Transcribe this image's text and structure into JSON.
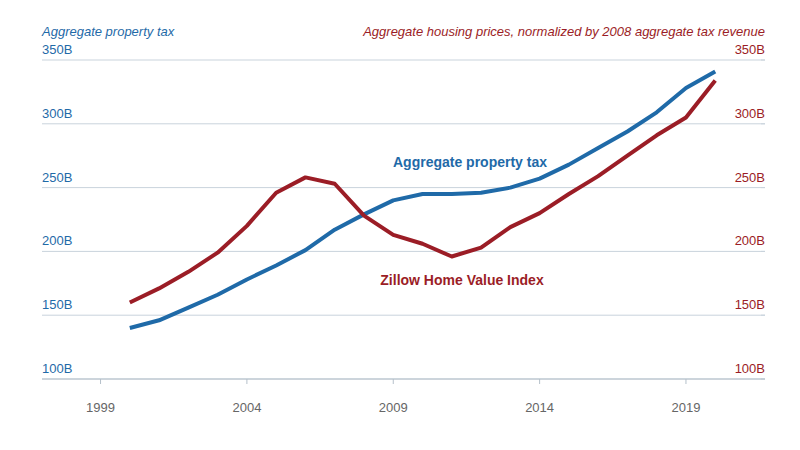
{
  "chart_data": {
    "type": "line",
    "y_label": "Aggregate property tax",
    "y2_label": "Aggregate housing prices, normalized by 2008 aggregate tax revenue",
    "x": [
      2000,
      2001,
      2002,
      2003,
      2004,
      2005,
      2006,
      2007,
      2008,
      2009,
      2010,
      2011,
      2012,
      2013,
      2014,
      2015,
      2016,
      2017,
      2018,
      2019,
      2020
    ],
    "series": [
      {
        "name": "Aggregate property tax",
        "color": "#1f6aa8",
        "values": [
          140,
          146,
          156,
          166,
          178,
          189,
          201,
          217,
          229,
          240,
          245,
          245,
          246,
          250,
          257,
          268,
          281,
          294,
          309,
          328,
          341
        ]
      },
      {
        "name": "Zillow Home Value Index",
        "color": "#9b1d26",
        "axis": "y2",
        "values": [
          160,
          171,
          184,
          199,
          220,
          246,
          258,
          253,
          228,
          213,
          206,
          196,
          203,
          219,
          230,
          245,
          259,
          275,
          291,
          305,
          334
        ]
      }
    ],
    "xlim": [
      1997,
      2021.7
    ],
    "xticks": [
      1999,
      2004,
      2009,
      2014,
      2019
    ],
    "ylim": [
      100,
      350
    ],
    "yticks": [
      {
        "value": 100,
        "label": "100B"
      },
      {
        "value": 150,
        "label": "150B"
      },
      {
        "value": 200,
        "label": "200B"
      },
      {
        "value": 250,
        "label": "250B"
      },
      {
        "value": 300,
        "label": "300B"
      },
      {
        "value": 350,
        "label": "350B"
      }
    ],
    "y2lim": [
      100,
      350
    ],
    "y2ticks": [
      {
        "value": 100,
        "label": "100B"
      },
      {
        "value": 150,
        "label": "150B"
      },
      {
        "value": 200,
        "label": "200B"
      },
      {
        "value": 250,
        "label": "250B"
      },
      {
        "value": 300,
        "label": "300B"
      },
      {
        "value": 350,
        "label": "350B"
      }
    ],
    "grid": true
  }
}
